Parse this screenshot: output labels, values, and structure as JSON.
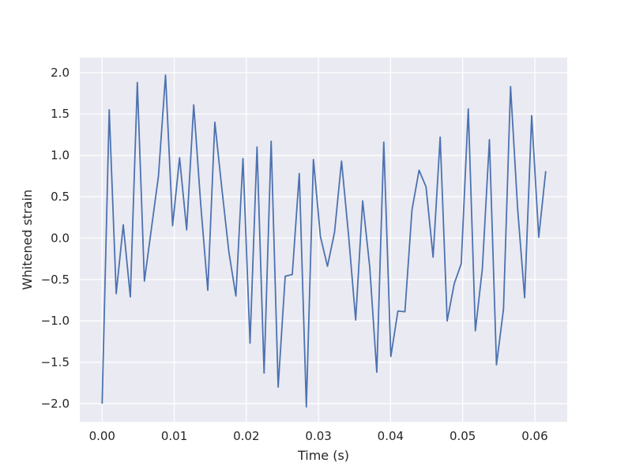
{
  "chart_data": {
    "type": "line",
    "title": "",
    "xlabel": "Time (s)",
    "ylabel": "Whitened strain",
    "xlim": [
      -0.0031,
      0.0645
    ],
    "ylim": [
      -2.22,
      2.18
    ],
    "grid": true,
    "colors": {
      "background": "#EAEAF2",
      "grid": "#FFFFFF",
      "line": "#4C72B0",
      "text": "#262626"
    },
    "x_ticks": [
      {
        "value": 0.0,
        "label": "0.00"
      },
      {
        "value": 0.01,
        "label": "0.01"
      },
      {
        "value": 0.02,
        "label": "0.02"
      },
      {
        "value": 0.03,
        "label": "0.03"
      },
      {
        "value": 0.04,
        "label": "0.04"
      },
      {
        "value": 0.05,
        "label": "0.05"
      },
      {
        "value": 0.06,
        "label": "0.06"
      }
    ],
    "y_ticks": [
      {
        "value": 2.0,
        "label": "2.0"
      },
      {
        "value": 1.5,
        "label": "1.5"
      },
      {
        "value": 1.0,
        "label": "1.0"
      },
      {
        "value": 0.5,
        "label": "0.5"
      },
      {
        "value": 0.0,
        "label": "0.0"
      },
      {
        "value": -0.5,
        "label": "−0.5"
      },
      {
        "value": -1.0,
        "label": "−1.0"
      },
      {
        "value": -1.5,
        "label": "−1.5"
      },
      {
        "value": -2.0,
        "label": "−2.0"
      }
    ],
    "series": [
      {
        "x": [
          0.0,
          0.00098,
          0.00195,
          0.00293,
          0.00391,
          0.00488,
          0.00586,
          0.00684,
          0.00781,
          0.00879,
          0.00977,
          0.01074,
          0.01172,
          0.0127,
          0.01367,
          0.01465,
          0.01563,
          0.0166,
          0.01758,
          0.01855,
          0.01953,
          0.02051,
          0.02148,
          0.02246,
          0.02344,
          0.02441,
          0.02539,
          0.02637,
          0.02734,
          0.02832,
          0.0293,
          0.03027,
          0.03125,
          0.03223,
          0.0332,
          0.03418,
          0.03516,
          0.03613,
          0.03711,
          0.03809,
          0.03906,
          0.04004,
          0.04102,
          0.04199,
          0.04297,
          0.04395,
          0.04492,
          0.0459,
          0.04688,
          0.04785,
          0.04883,
          0.0498,
          0.05078,
          0.05176,
          0.05273,
          0.05371,
          0.05469,
          0.05566,
          0.05664,
          0.05762,
          0.05859,
          0.05957,
          0.06055,
          0.06152
        ],
        "y": [
          -2.0,
          1.55,
          -0.67,
          0.16,
          -0.71,
          1.88,
          -0.52,
          0.12,
          0.75,
          1.97,
          0.15,
          0.97,
          0.1,
          1.61,
          0.41,
          -0.63,
          1.4,
          0.6,
          -0.17,
          -0.7,
          0.96,
          -1.27,
          1.1,
          -1.63,
          1.17,
          -1.8,
          -0.46,
          -0.44,
          0.78,
          -2.04,
          0.95,
          0.02,
          -0.34,
          0.07,
          0.93,
          0.03,
          -0.99,
          0.45,
          -0.35,
          -1.62,
          1.16,
          -1.43,
          -0.88,
          -0.89,
          0.34,
          0.82,
          0.62,
          -0.23,
          1.22,
          -1.0,
          -0.55,
          -0.31,
          1.56,
          -1.12,
          -0.37,
          1.19,
          -1.53,
          -0.86,
          1.83,
          0.36,
          -0.72,
          1.48,
          0.01,
          0.81
        ]
      }
    ]
  }
}
